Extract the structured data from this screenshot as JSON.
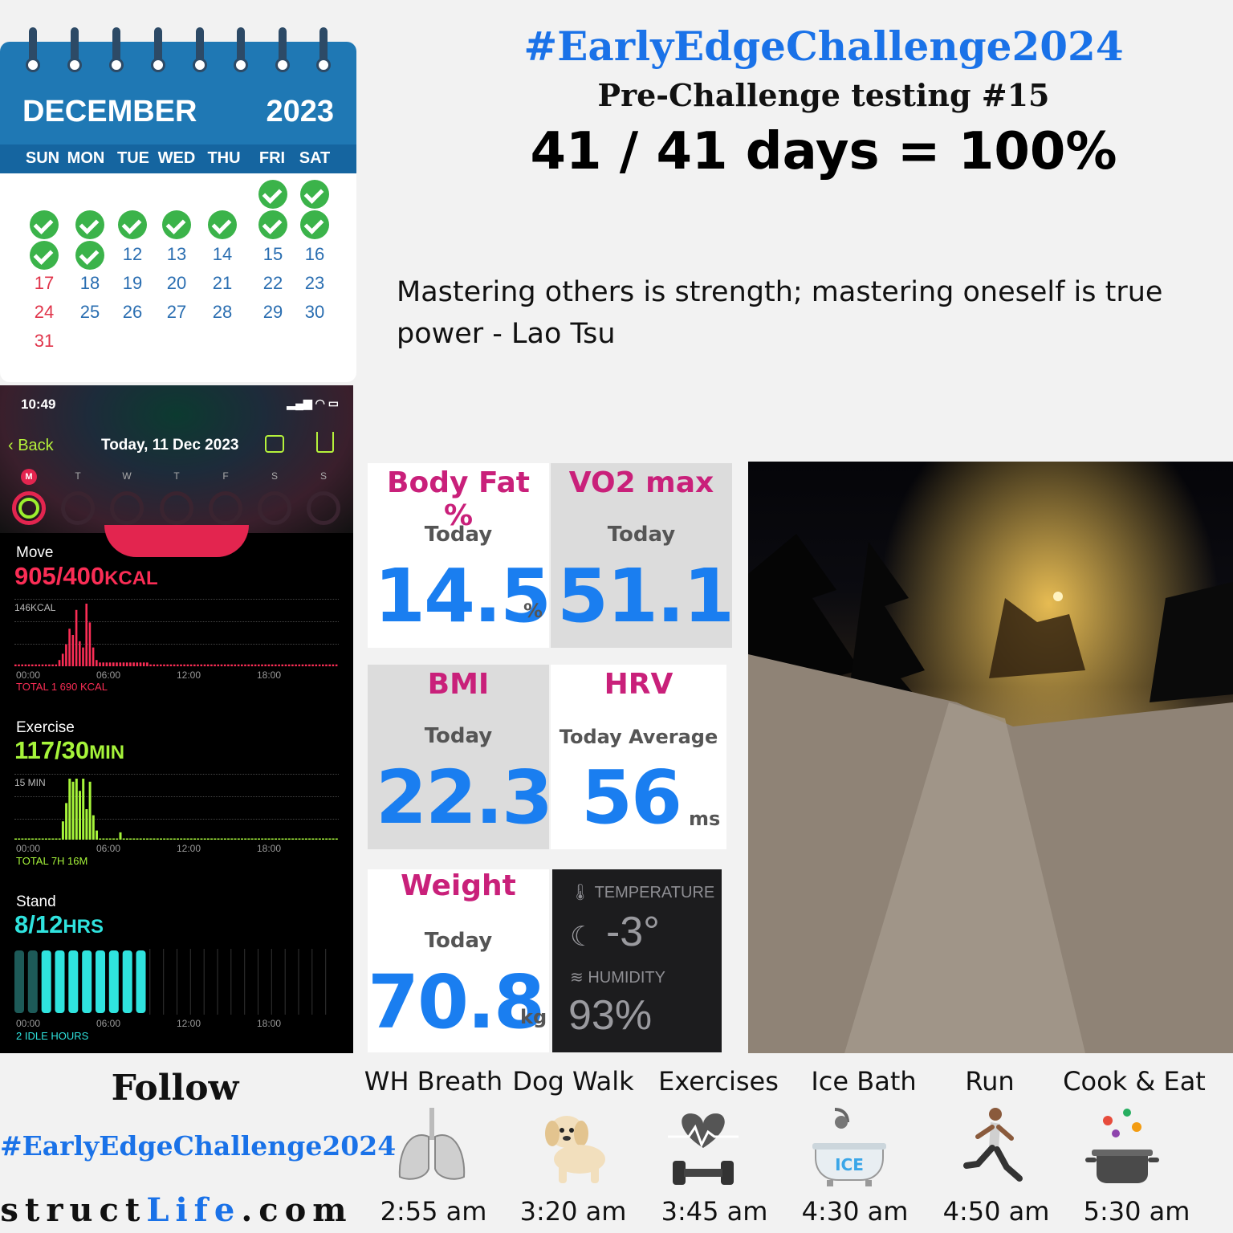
{
  "calendar": {
    "month": "DECEMBER",
    "year": "2023",
    "weekdays": [
      "SUN",
      "MON",
      "TUE",
      "WED",
      "THU",
      "FRI",
      "SAT"
    ],
    "completed_days": [
      1,
      2,
      3,
      4,
      5,
      6,
      7,
      8,
      9,
      10,
      11
    ],
    "visible_days": [
      "12",
      "13",
      "14",
      "15",
      "16",
      "17",
      "18",
      "19",
      "20",
      "21",
      "22",
      "23",
      "24",
      "25",
      "26",
      "27",
      "28",
      "29",
      "30",
      "31"
    ],
    "sunday_days": [
      "17",
      "24",
      "31"
    ]
  },
  "header": {
    "hashtag": "#EarlyEdgeChallenge2024",
    "subtitle": "Pre-Challenge testing #15",
    "score": "41 / 41 days = 100%"
  },
  "quote": "Mastering others is strength; mastering oneself is true power - Lao Tsu",
  "phone": {
    "time": "10:49",
    "status": "▂▄▆ ◠ ▭",
    "back_label": "Back",
    "date": "Today, 11 Dec 2023",
    "week_days": [
      "M",
      "T",
      "W",
      "T",
      "F",
      "S",
      "S"
    ],
    "move": {
      "label": "Move",
      "value": "905/400",
      "unit": "KCAL",
      "ymax": "146KCAL",
      "total": "TOTAL 1 690 KCAL",
      "color": "#fa2d55"
    },
    "exercise": {
      "label": "Exercise",
      "value": "117/30",
      "unit": "MIN",
      "ymax": "15 MIN",
      "total": "TOTAL 7H 16M",
      "color": "#a6f43a"
    },
    "stand": {
      "label": "Stand",
      "value": "8/12",
      "unit": "HRS",
      "total": "2 IDLE HOURS",
      "color": "#2fe3de"
    },
    "axis_ticks": [
      "00:00",
      "06:00",
      "12:00",
      "18:00"
    ]
  },
  "tiles": {
    "body_fat": {
      "title": "Body Fat %",
      "sub": "Today",
      "value": "14.5",
      "unit": "%"
    },
    "vo2": {
      "title": "VO2 max",
      "sub": "Today",
      "value": "51.1"
    },
    "bmi": {
      "title": "BMI",
      "sub": "Today",
      "value": "22.3"
    },
    "hrv": {
      "title": "HRV",
      "sub": "Today Average",
      "value": "56",
      "unit": "ms"
    },
    "weight": {
      "title": "Weight",
      "sub": "Today",
      "value": "70.8",
      "unit": "kg"
    },
    "weather": {
      "temp_label": "TEMPERATURE",
      "temp": "-3°",
      "humidity_label": "HUMIDITY",
      "humidity": "93%"
    }
  },
  "footer": {
    "follow": "Follow",
    "hashtag": "#EarlyEdgeChallenge2024",
    "site_a": "struct",
    "site_b": "Life",
    "site_c": ".com"
  },
  "habits": [
    {
      "label": "WH Breath",
      "time": "2:55 am",
      "icon": "lungs-icon"
    },
    {
      "label": "Dog Walk",
      "time": "3:20 am",
      "icon": "puppy-icon"
    },
    {
      "label": "Exercises",
      "time": "3:45 am",
      "icon": "dumbbell-heart-icon"
    },
    {
      "label": "Ice Bath",
      "time": "4:30 am",
      "icon": "ice-bath-icon"
    },
    {
      "label": "Run",
      "time": "4:50 am",
      "icon": "runner-icon"
    },
    {
      "label": "Cook & Eat",
      "time": "5:30 am",
      "icon": "cooking-pot-icon"
    }
  ]
}
